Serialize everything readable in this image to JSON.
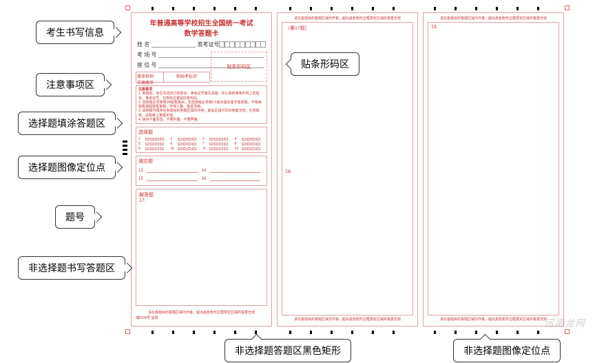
{
  "colors": {
    "accent": "#c83333",
    "border": "#e2a0a0",
    "black": "#000000",
    "callout_border": "#333333",
    "bg": "#ffffff"
  },
  "header": {
    "title_main": "年普通高等学校招生全国统一考试",
    "title_sub": "数学答题卡"
  },
  "info_fields": {
    "name_label": "姓    名",
    "room_label": "考 场 号",
    "seat_label": "座 位 号",
    "admission_label": "准考证号"
  },
  "notice_strip": {
    "left_top": "填涂样例",
    "left_bottom": "正确填涂",
    "marker_label": "粘贴考标识"
  },
  "barcode_zone_label": "贴条形码区",
  "notice_box": {
    "heading": "注意事项",
    "lines": [
      "1. 答题前，考生先将自己的姓名、准考证号填写清楚，并认真核准条形码上的姓名、准考证号。在规定位置贴好条形码。",
      "2. 选择题必须使用2B铅笔填涂；非选择题必须用0.5毫米黑色签字笔答题，不得用铅笔或圆珠笔答题；字体工整、笔迹清晰。",
      "3. 请按题号顺序在各题目的答题区域内作答，超出区域书写的答案无效；在草稿纸、试题卷上答题无效。",
      "4. 保持卡面清洁，不要折叠、不要弄破。"
    ]
  },
  "selection": {
    "title": "选择题",
    "options": [
      "A",
      "B",
      "C",
      "D"
    ],
    "numbers": [
      1,
      2,
      3,
      4,
      5,
      6,
      7,
      8,
      9,
      10,
      11,
      12
    ]
  },
  "fill": {
    "title": "填空题",
    "numbers": [
      13,
      14,
      15,
      16
    ]
  },
  "free_answer": {
    "title": "解答题",
    "first_number": "17."
  },
  "column_instruction": "请在各题目的答题区域内作答，超出黑色矩形边框限定区域的答案无效",
  "col2_label": "（第17题）",
  "col2_number": "18.",
  "col3_number": "19.",
  "footer_code": "湘0228号 益阳",
  "callouts": {
    "cand_info": "考生书写信息",
    "notice_area": "注意事项区",
    "sel_fill": "选择题填涂答题区",
    "sel_mark": "选择题图像定位点",
    "q_number": "题号",
    "free_area": "非选择题书写答题区",
    "barcode": "贴条形码区",
    "black_rect": "非选择题答题区黑色矩形",
    "locator": "非选择题图像定位点"
  },
  "watermark": "河南龙网"
}
